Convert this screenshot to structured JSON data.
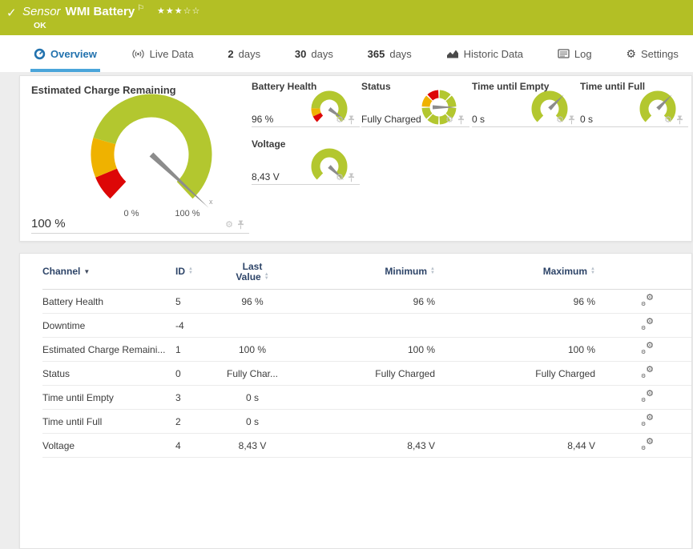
{
  "header": {
    "check_glyph": "✓",
    "kind_label": "Sensor",
    "title": "WMI Battery",
    "flag_glyph": "⚐",
    "stars": "★★★☆☆",
    "status": "OK",
    "bg_color": "#b3bf25"
  },
  "tabs": [
    {
      "label": "Overview",
      "active": true
    },
    {
      "label": "Live Data"
    },
    {
      "num": "2",
      "label": "days"
    },
    {
      "num": "30",
      "label": "days"
    },
    {
      "num": "365",
      "label": "days"
    },
    {
      "label": "Historic Data"
    },
    {
      "label": "Log"
    },
    {
      "label": "Settings",
      "gear_glyph": "⚙"
    }
  ],
  "gauges": {
    "gear_glyph": "⚙",
    "main": {
      "title": "Estimated Charge Remaining",
      "value": "100 %",
      "scale_min": "0 %",
      "scale_max": "100 %",
      "kind": "arc",
      "size": "main",
      "zones": [
        {
          "to": 9,
          "color": "red"
        },
        {
          "to": 23,
          "color": "yellow"
        },
        {
          "to": 100,
          "color": "green"
        }
      ],
      "needle_deg": 43,
      "tip_marker": "x"
    },
    "minis": [
      {
        "title": "Battery Health",
        "value": "96 %",
        "kind": "arc",
        "zones": [
          {
            "to": 8,
            "color": "red"
          },
          {
            "to": 18,
            "color": "yellow"
          },
          {
            "to": 100,
            "color": "green"
          }
        ],
        "needle_deg": 36
      },
      {
        "title": "Status",
        "value": "Fully Charged",
        "kind": "ring",
        "segments": [
          "green",
          "green",
          "green",
          "green",
          "yellow",
          "red",
          "green",
          "green"
        ],
        "needle_deg": 0
      },
      {
        "title": "Time until Empty",
        "value": "0 s",
        "kind": "arc",
        "zones": [
          {
            "to": 100,
            "color": "green"
          }
        ],
        "needle_deg": 315
      },
      {
        "title": "Time until Full",
        "value": "0 s",
        "kind": "arc",
        "zones": [
          {
            "to": 100,
            "color": "green"
          }
        ],
        "needle_deg": 315
      },
      {
        "title": "Voltage",
        "value": "8,43 V",
        "kind": "arc",
        "zones": [
          {
            "to": 100,
            "color": "green"
          }
        ],
        "needle_deg": 43
      }
    ]
  },
  "table": {
    "sorted_by": "Channel",
    "columns": {
      "channel": "Channel",
      "id": "ID",
      "last_line1": "Last",
      "last_line2": "Value",
      "min": "Minimum",
      "max": "Maximum"
    },
    "rows": [
      {
        "channel": "Battery Health",
        "id": "5",
        "last": "96 %",
        "min": "96 %",
        "max": "96 %"
      },
      {
        "channel": "Downtime",
        "id": "-4",
        "last": "",
        "min": "",
        "max": ""
      },
      {
        "channel": "Estimated Charge Remaini...",
        "id": "1",
        "last": "100 %",
        "min": "100 %",
        "max": "100 %"
      },
      {
        "channel": "Status",
        "id": "0",
        "last": "Fully Char...",
        "min": "Fully Charged",
        "max": "Fully Charged"
      },
      {
        "channel": "Time until Empty",
        "id": "3",
        "last": "0 s",
        "min": "",
        "max": ""
      },
      {
        "channel": "Time until Full",
        "id": "2",
        "last": "0 s",
        "min": "",
        "max": ""
      },
      {
        "channel": "Voltage",
        "id": "4",
        "last": "8,43 V",
        "min": "8,43 V",
        "max": "8,44 V"
      }
    ]
  },
  "colors": {
    "green": "#b3c72f",
    "yellow": "#efb200",
    "red": "#dd0707",
    "needle": "#8c8c8c",
    "header_green": "#b3bf25",
    "tab_active_text": "#2272ae",
    "tab_underline": "#4aa5da",
    "table_header_text": "#2d4468"
  }
}
